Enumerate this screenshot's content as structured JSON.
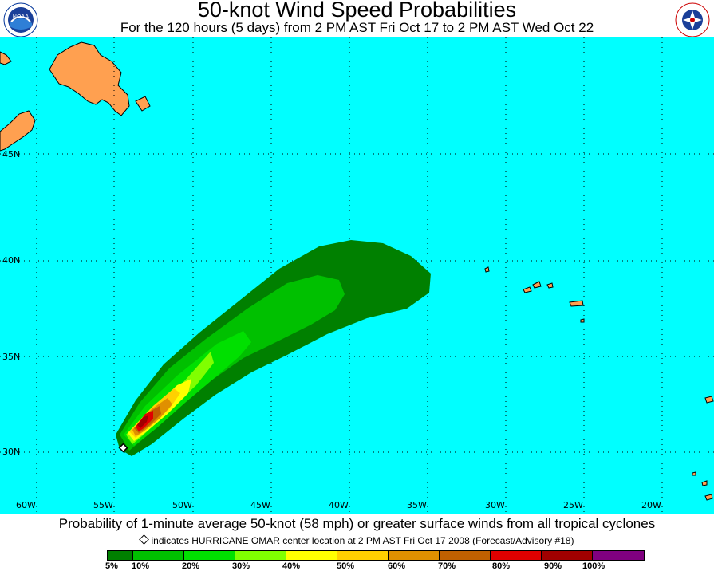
{
  "header": {
    "title": "50-knot Wind Speed Probabilities",
    "subtitle": "For the 120 hours (5 days) from 2 PM AST Fri Oct 17 to 2 PM AST Wed Oct 22",
    "left_logo": "NOAA",
    "right_logo": "NATIONAL WEATHER SERVICE"
  },
  "map": {
    "ocean_color": "#00ffff",
    "land_color": "#ffa050",
    "lat_labels": [
      "45N",
      "40N",
      "35N",
      "30N"
    ],
    "lon_labels": [
      "60W",
      "55W",
      "50W",
      "45W",
      "40W",
      "35W",
      "30W",
      "25W",
      "20W"
    ],
    "storm_marker": "diamond-icon"
  },
  "footer": {
    "caption": "Probability of 1-minute average 50-knot (58 mph) or greater surface winds from all tropical cyclones",
    "legend_text": "indicates HURRICANE OMAR center location at 2 PM AST Fri Oct 17 2008 (Forecast/Advisory #18)"
  },
  "color_scale": {
    "colors": [
      "#008000",
      "#00c000",
      "#00e000",
      "#80ff00",
      "#ffff00",
      "#ffd000",
      "#e09000",
      "#c06000",
      "#e00000",
      "#a00000",
      "#800080"
    ],
    "ticks": [
      "5%",
      "10%",
      "20%",
      "30%",
      "40%",
      "50%",
      "60%",
      "70%",
      "80%",
      "90%",
      "100%"
    ]
  }
}
